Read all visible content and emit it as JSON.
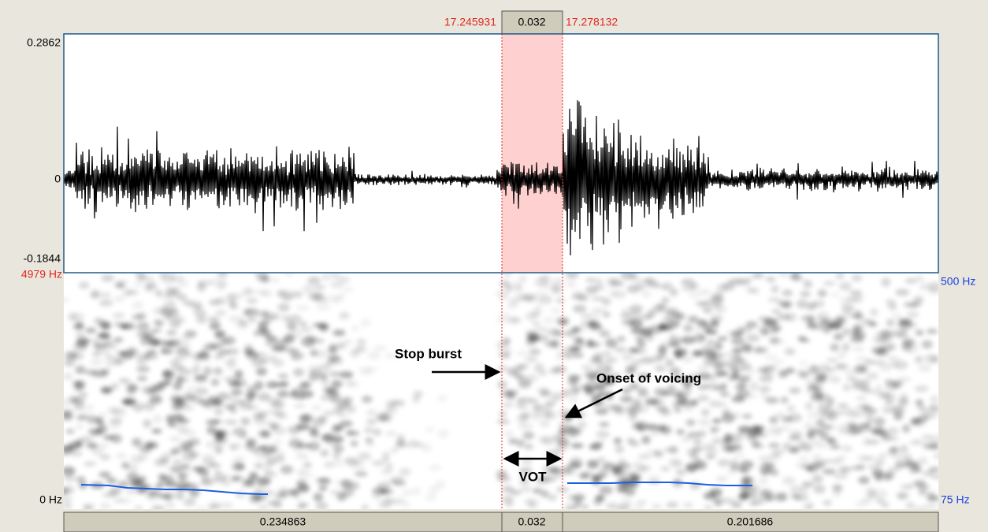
{
  "selection": {
    "start": "17.245931",
    "duration": "0.032",
    "end": "17.278132"
  },
  "waveform": {
    "max_label": "0.2862",
    "zero_label": "0",
    "min_label": "-0.1844"
  },
  "spectrogram": {
    "top_freq": "4979 Hz",
    "bottom_freq": "0 Hz",
    "pitch_top": "500 Hz",
    "pitch_bottom": "75 Hz"
  },
  "annotations": {
    "stop_burst": "Stop burst",
    "onset": "Onset of voicing",
    "vot": "VOT"
  },
  "durations": {
    "left": "0.234863",
    "selected": "0.032",
    "right": "0.201686"
  }
}
